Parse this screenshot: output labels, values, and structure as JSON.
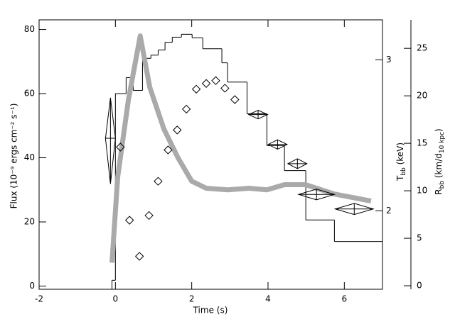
{
  "chart_data": {
    "type": "combo",
    "xlabel": "Time (s)",
    "ylabel": "Flux (10⁻⁹ ergs cm⁻² s⁻¹)",
    "y2label": [
      "T",
      "bb",
      " (keV)"
    ],
    "y3label": [
      "R",
      "bb",
      " (km/d",
      "10 kpc",
      ")"
    ],
    "xlim": [
      -2,
      7
    ],
    "xticks": [
      -2,
      0,
      2,
      4,
      6
    ],
    "ylim": [
      -1,
      83
    ],
    "yticks": [
      0,
      20,
      40,
      60,
      80
    ],
    "y2lim": [
      1.62,
      3.34
    ],
    "y2ticks": [
      2,
      3
    ],
    "y2log": true,
    "y3lim": [
      -0.37,
      28
    ],
    "y3ticks": [
      0,
      5,
      10,
      15,
      20,
      25
    ],
    "series": [
      {
        "type": "step",
        "color": "#000000",
        "bins": [
          -0.09,
          0,
          0.28,
          0.47,
          0.71,
          0.93,
          1.12,
          1.3,
          1.49,
          1.73,
          2.01,
          2.29,
          2.79,
          2.94,
          3.45,
          3.97,
          4.43,
          4.99,
          5.74,
          7.0
        ],
        "values": [
          1.8,
          60,
          65,
          61,
          71,
          72,
          73.6,
          76,
          77.6,
          78.5,
          77.4,
          74,
          69.6,
          63.6,
          53.7,
          43.8,
          36,
          20.6,
          13.9
        ]
      },
      {
        "type": "line",
        "color": "#aaaaaa",
        "x": [
          -0.09,
          0.06,
          0.34,
          0.65,
          0.9,
          1.27,
          1.64,
          2.0,
          2.38,
          2.94,
          3.5,
          3.97,
          4.43,
          4.99,
          5.74,
          6.7
        ],
        "values": [
          7.3,
          34,
          58,
          78,
          62,
          49,
          40,
          32.7,
          30.5,
          30,
          30.5,
          30,
          31.6,
          31.6,
          28.7,
          26.5
        ]
      },
      {
        "type": "scatter",
        "axis": "y3",
        "color": "#000000",
        "x": [
          0.13,
          0.37,
          0.63,
          0.88,
          1.12,
          1.38,
          1.62,
          1.86,
          2.12,
          2.38,
          2.63,
          2.87,
          3.13
        ],
        "values": [
          14.6,
          6.9,
          3.1,
          7.4,
          11.0,
          14.3,
          16.4,
          18.6,
          20.7,
          21.3,
          21.6,
          20.8,
          19.6
        ]
      },
      {
        "type": "errorbar",
        "axis": "y2",
        "color": "#000000",
        "x": [
          -0.13,
          3.74,
          4.25,
          4.77,
          5.27,
          6.26
        ],
        "xerr": [
          0.13,
          0.25,
          0.25,
          0.25,
          0.47,
          0.5
        ],
        "values": [
          2.43,
          2.59,
          2.39,
          2.27,
          2.09,
          2.01
        ],
        "yerr": [
          0.28,
          0.03,
          0.03,
          0.03,
          0.03,
          0.03
        ]
      }
    ]
  }
}
